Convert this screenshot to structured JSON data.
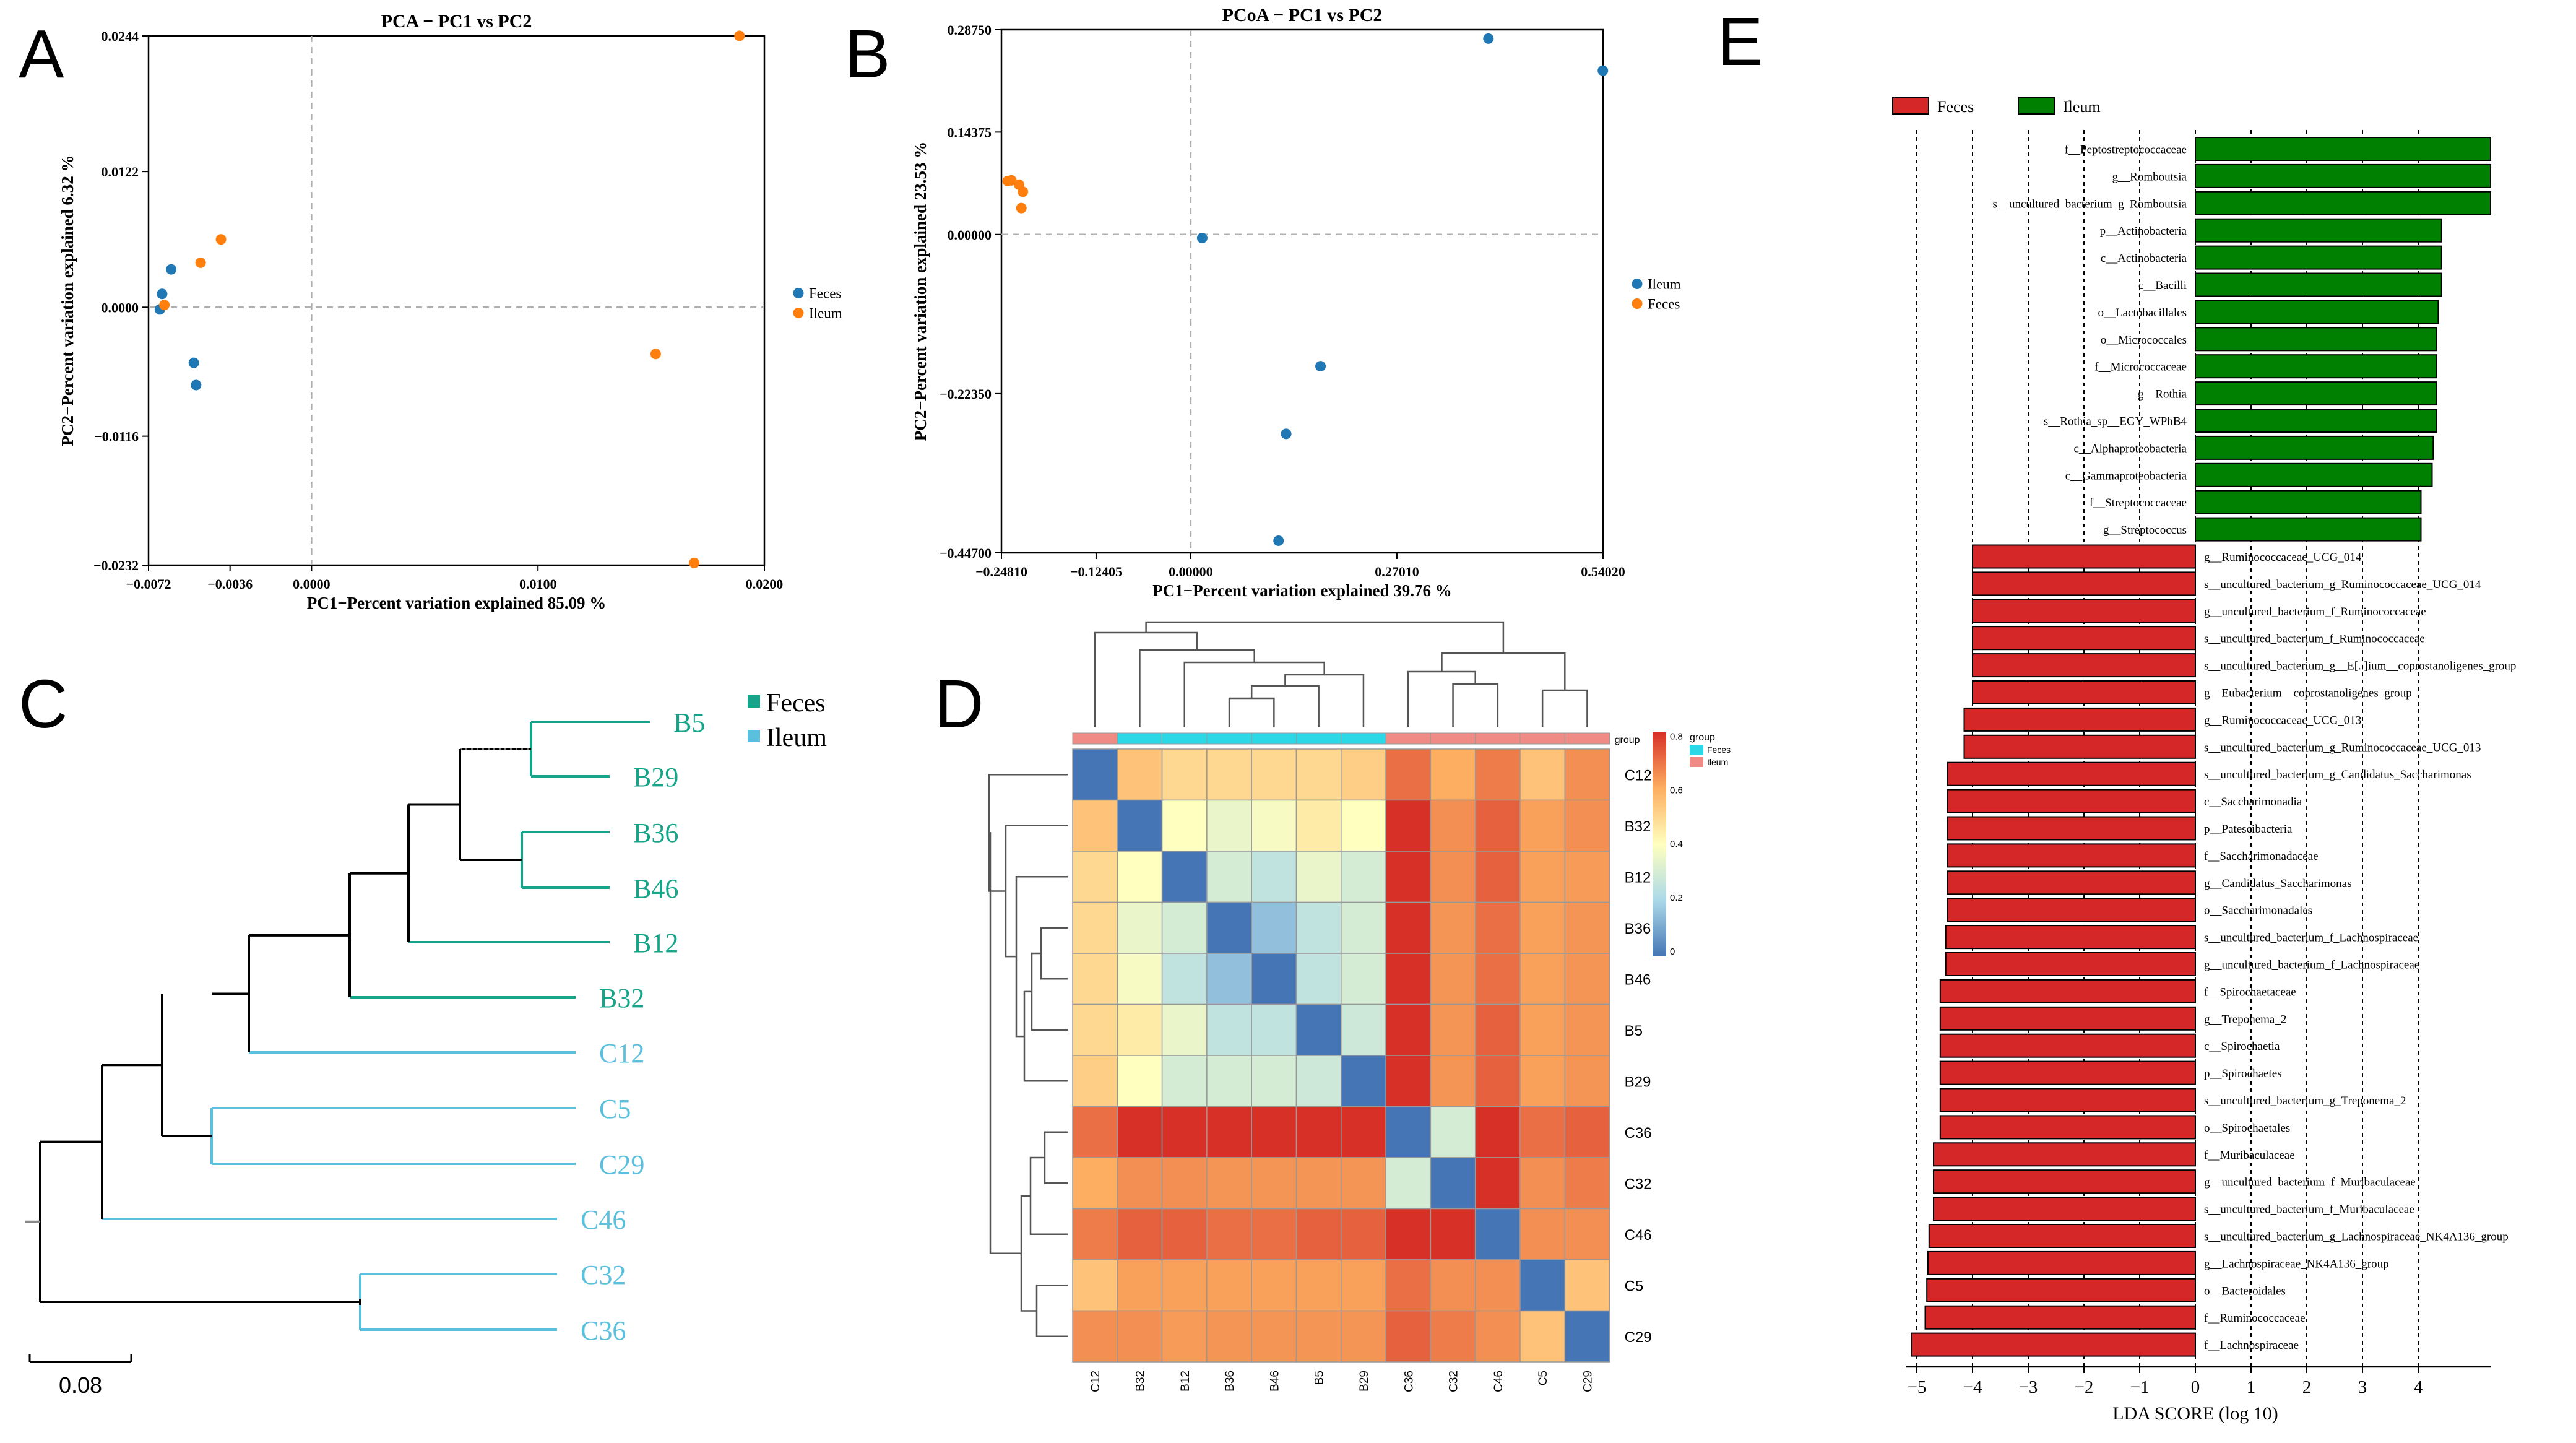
{
  "panel_labels": {
    "A": "A",
    "B": "B",
    "C": "C",
    "D": "D",
    "E": "E"
  },
  "colors": {
    "feces": "#1f77b4",
    "ileum": "#ff7f0e",
    "grid": "#b0b0b0",
    "tree_black": "#000000",
    "tree_feces": "#17a589",
    "tree_ileum": "#5bc0de",
    "lda_feces": "#d62728",
    "lda_ileum": "#008000",
    "heat_feces_bar": "#2bd9e6",
    "heat_ileum_bar": "#f08a84"
  },
  "chart_data": [
    {
      "id": "A",
      "type": "scatter",
      "title": "PCA − PC1 vs PC2",
      "xlabel": "PC1−Percent variation explained 85.09 %",
      "ylabel": "PC2−Percent variation explained 6.32 %",
      "xlim": [
        -0.0072,
        0.02
      ],
      "ylim": [
        -0.0232,
        0.0244
      ],
      "xticks": [
        -0.0072,
        -0.0036,
        0.0,
        0.01,
        0.02
      ],
      "xtick_labels": [
        "−0.0072",
        "−0.0036",
        "0.0000",
        "0.0100",
        "0.0200"
      ],
      "yticks": [
        -0.0232,
        -0.0116,
        0.0,
        0.0122,
        0.0244
      ],
      "ytick_labels": [
        "−0.0232",
        "−0.0116",
        "0.0000",
        "0.0122",
        "0.0244"
      ],
      "legend": [
        {
          "name": "Feces",
          "color": "#1f77b4"
        },
        {
          "name": "Ileum",
          "color": "#ff7f0e"
        }
      ],
      "series": [
        {
          "name": "Feces",
          "points": [
            [
              -0.0062,
              0.0034
            ],
            [
              -0.0066,
              0.0012
            ],
            [
              -0.0067,
              -0.0002
            ],
            [
              -0.0052,
              -0.005
            ],
            [
              -0.0051,
              -0.007
            ]
          ]
        },
        {
          "name": "Ileum",
          "points": [
            [
              0.0189,
              0.0244
            ],
            [
              -0.004,
              0.0061
            ],
            [
              -0.0049,
              0.004
            ],
            [
              -0.0065,
              0.0002
            ],
            [
              0.0152,
              -0.0042
            ],
            [
              0.0169,
              -0.023
            ]
          ]
        }
      ]
    },
    {
      "id": "B",
      "type": "scatter",
      "title": "PCoA − PC1 vs PC2",
      "xlabel": "PC1−Percent variation explained 39.76 %",
      "ylabel": "PC2−Percent variation explained 23.53 %",
      "xlim": [
        -0.2481,
        0.5402
      ],
      "ylim": [
        -0.447,
        0.2875
      ],
      "xticks": [
        -0.2481,
        -0.12405,
        0.0,
        0.2701,
        0.5402
      ],
      "xtick_labels": [
        "−0.24810",
        "−0.12405",
        "0.00000",
        "0.27010",
        "0.54020"
      ],
      "yticks": [
        -0.447,
        -0.2235,
        0.0,
        0.14375,
        0.2875
      ],
      "ytick_labels": [
        "−0.44700",
        "−0.22350",
        "0.00000",
        "0.14375",
        "0.28750"
      ],
      "legend": [
        {
          "name": "Ileum",
          "color": "#1f77b4"
        },
        {
          "name": "Feces",
          "color": "#ff7f0e"
        }
      ],
      "series": [
        {
          "name": "Ileum",
          "points": [
            [
              0.39,
              0.275
            ],
            [
              0.54,
              0.23
            ],
            [
              0.015,
              -0.005
            ],
            [
              0.17,
              -0.185
            ],
            [
              0.125,
              -0.28
            ],
            [
              0.115,
              -0.43
            ]
          ]
        },
        {
          "name": "Feces",
          "points": [
            [
              -0.24,
              0.075
            ],
            [
              -0.235,
              0.076
            ],
            [
              -0.225,
              0.07
            ],
            [
              -0.22,
              0.06
            ],
            [
              -0.222,
              0.037
            ]
          ]
        }
      ]
    },
    {
      "id": "C",
      "type": "dendrogram",
      "legend": [
        {
          "name": "Feces",
          "color": "#17a589"
        },
        {
          "name": "Ileum",
          "color": "#5bc0de"
        }
      ],
      "leaves": [
        {
          "label": "B5",
          "group": "Feces"
        },
        {
          "label": "B29",
          "group": "Feces"
        },
        {
          "label": "B36",
          "group": "Feces"
        },
        {
          "label": "B46",
          "group": "Feces"
        },
        {
          "label": "B12",
          "group": "Feces"
        },
        {
          "label": "B32",
          "group": "Feces"
        },
        {
          "label": "C12",
          "group": "Ileum"
        },
        {
          "label": "C5",
          "group": "Ileum"
        },
        {
          "label": "C29",
          "group": "Ileum"
        },
        {
          "label": "C46",
          "group": "Ileum"
        },
        {
          "label": "C32",
          "group": "Ileum"
        },
        {
          "label": "C36",
          "group": "Ileum"
        }
      ],
      "scale_label": "0.08"
    },
    {
      "id": "D",
      "type": "heatmap",
      "columns": [
        "C12",
        "B32",
        "B12",
        "B36",
        "B46",
        "B5",
        "B29",
        "C36",
        "C32",
        "C46",
        "C5",
        "C29"
      ],
      "rows": [
        "C12",
        "B32",
        "B12",
        "B36",
        "B46",
        "B5",
        "B29",
        "C36",
        "C32",
        "C46",
        "C5",
        "C29"
      ],
      "column_groups": [
        "Ileum",
        "Feces",
        "Feces",
        "Feces",
        "Feces",
        "Feces",
        "Feces",
        "Ileum",
        "Ileum",
        "Ileum",
        "Ileum",
        "Ileum"
      ],
      "group_label": "group",
      "legend_title": "group",
      "legend_items": [
        {
          "name": "Feces",
          "color": "#2bd9e6"
        },
        {
          "name": "Ileum",
          "color": "#f08a84"
        }
      ],
      "colorbar_ticks": [
        0,
        0.2,
        0.4,
        0.6,
        0.8
      ],
      "colorbar_tick_labels": [
        "0",
        "0.2",
        "0.4",
        "0.6",
        "0.8"
      ],
      "values": [
        [
          0.0,
          0.55,
          0.5,
          0.5,
          0.5,
          0.5,
          0.52,
          0.7,
          0.6,
          0.68,
          0.55,
          0.65
        ],
        [
          0.55,
          0.0,
          0.4,
          0.35,
          0.38,
          0.45,
          0.4,
          0.83,
          0.65,
          0.72,
          0.62,
          0.65
        ],
        [
          0.5,
          0.4,
          0.0,
          0.3,
          0.25,
          0.35,
          0.3,
          0.82,
          0.65,
          0.72,
          0.62,
          0.63
        ],
        [
          0.5,
          0.35,
          0.3,
          0.0,
          0.15,
          0.25,
          0.3,
          0.82,
          0.64,
          0.7,
          0.62,
          0.64
        ],
        [
          0.5,
          0.38,
          0.25,
          0.15,
          0.0,
          0.25,
          0.3,
          0.82,
          0.64,
          0.7,
          0.62,
          0.64
        ],
        [
          0.5,
          0.45,
          0.35,
          0.25,
          0.25,
          0.0,
          0.28,
          0.82,
          0.64,
          0.72,
          0.62,
          0.64
        ],
        [
          0.52,
          0.4,
          0.3,
          0.3,
          0.3,
          0.28,
          0.0,
          0.82,
          0.64,
          0.72,
          0.62,
          0.64
        ],
        [
          0.7,
          0.83,
          0.82,
          0.82,
          0.82,
          0.82,
          0.82,
          0.0,
          0.3,
          0.8,
          0.7,
          0.72
        ],
        [
          0.6,
          0.65,
          0.65,
          0.64,
          0.64,
          0.64,
          0.64,
          0.3,
          0.0,
          0.8,
          0.65,
          0.68
        ],
        [
          0.68,
          0.72,
          0.72,
          0.7,
          0.7,
          0.72,
          0.72,
          0.8,
          0.8,
          0.0,
          0.65,
          0.65
        ],
        [
          0.55,
          0.62,
          0.62,
          0.62,
          0.62,
          0.62,
          0.62,
          0.7,
          0.65,
          0.65,
          0.0,
          0.55
        ],
        [
          0.65,
          0.65,
          0.63,
          0.64,
          0.64,
          0.64,
          0.64,
          0.72,
          0.68,
          0.65,
          0.55,
          0.0
        ]
      ]
    },
    {
      "id": "E",
      "type": "bar",
      "orientation": "horizontal",
      "xlabel": "LDA SCORE (log 10)",
      "xlim": [
        -5.2,
        5.3
      ],
      "xticks": [
        -5,
        -4,
        -3,
        -2,
        -1,
        0,
        1,
        2,
        3,
        4
      ],
      "xtick_labels": [
        "−5",
        "−4",
        "−3",
        "−2",
        "−1",
        "0",
        "1",
        "2",
        "3",
        "4"
      ],
      "legend": [
        {
          "name": "Feces",
          "color": "#d62728"
        },
        {
          "name": "Ileum",
          "color": "#008000"
        }
      ],
      "bars": [
        {
          "label": "f__Peptostreptococcaceae",
          "value": 5.3,
          "group": "Ileum"
        },
        {
          "label": "g__Romboutsia",
          "value": 5.3,
          "group": "Ileum"
        },
        {
          "label": "s__uncultured_bacterium_g_Romboutsia",
          "value": 5.3,
          "group": "Ileum"
        },
        {
          "label": "p__Actinobacteria",
          "value": 4.42,
          "group": "Ileum"
        },
        {
          "label": "c__Actinobacteria",
          "value": 4.42,
          "group": "Ileum"
        },
        {
          "label": "c__Bacilli",
          "value": 4.42,
          "group": "Ileum"
        },
        {
          "label": "o__Lactobacillales",
          "value": 4.36,
          "group": "Ileum"
        },
        {
          "label": "o__Micrococcales",
          "value": 4.33,
          "group": "Ileum"
        },
        {
          "label": "f__Micrococcaceae",
          "value": 4.33,
          "group": "Ileum"
        },
        {
          "label": "g__Rothia",
          "value": 4.33,
          "group": "Ileum"
        },
        {
          "label": "s__Rothia_sp__EGY_WPhB4",
          "value": 4.33,
          "group": "Ileum"
        },
        {
          "label": "c__Alphaproteobacteria",
          "value": 4.27,
          "group": "Ileum"
        },
        {
          "label": "c__Gammaproteobacteria",
          "value": 4.25,
          "group": "Ileum"
        },
        {
          "label": "f__Streptococcaceae",
          "value": 4.05,
          "group": "Ileum"
        },
        {
          "label": "g__Streptococcus",
          "value": 4.05,
          "group": "Ileum"
        },
        {
          "label": "g__Ruminococcaceae_UCG_014",
          "value": -4.0,
          "group": "Feces"
        },
        {
          "label": "s__uncultured_bacterium_g_Ruminococcaceae_UCG_014",
          "value": -4.0,
          "group": "Feces"
        },
        {
          "label": "g__uncultured_bacterium_f_Ruminococcaceae",
          "value": -4.0,
          "group": "Feces"
        },
        {
          "label": "s__uncultured_bacterium_f_Ruminococcaceae",
          "value": -4.0,
          "group": "Feces"
        },
        {
          "label": "s__uncultured_bacterium_g__E[..]ium__coprostanoligenes_group",
          "value": -4.0,
          "group": "Feces"
        },
        {
          "label": "g__Eubacterium__coprostanoligenes_group",
          "value": -4.0,
          "group": "Feces"
        },
        {
          "label": "g__Ruminococcaceae_UCG_013",
          "value": -4.15,
          "group": "Feces"
        },
        {
          "label": "s__uncultured_bacterium_g_Ruminococcaceae_UCG_013",
          "value": -4.15,
          "group": "Feces"
        },
        {
          "label": "s__uncultured_bacterium_g_Candidatus_Saccharimonas",
          "value": -4.45,
          "group": "Feces"
        },
        {
          "label": "c__Saccharimonadia",
          "value": -4.45,
          "group": "Feces"
        },
        {
          "label": "p__Patescibacteria",
          "value": -4.45,
          "group": "Feces"
        },
        {
          "label": "f__Saccharimonadaceae",
          "value": -4.45,
          "group": "Feces"
        },
        {
          "label": "g__Candidatus_Saccharimonas",
          "value": -4.45,
          "group": "Feces"
        },
        {
          "label": "o__Saccharimonadales",
          "value": -4.45,
          "group": "Feces"
        },
        {
          "label": "s__uncultured_bacterium_f_Lachnospiraceae",
          "value": -4.48,
          "group": "Feces"
        },
        {
          "label": "g__uncultured_bacterium_f_Lachnospiraceae",
          "value": -4.48,
          "group": "Feces"
        },
        {
          "label": "f__Spirochaetaceae",
          "value": -4.58,
          "group": "Feces"
        },
        {
          "label": "g__Treponema_2",
          "value": -4.58,
          "group": "Feces"
        },
        {
          "label": "c__Spirochaetia",
          "value": -4.58,
          "group": "Feces"
        },
        {
          "label": "p__Spirochaetes",
          "value": -4.58,
          "group": "Feces"
        },
        {
          "label": "s__uncultured_bacterium_g_Treponema_2",
          "value": -4.58,
          "group": "Feces"
        },
        {
          "label": "o__Spirochaetales",
          "value": -4.58,
          "group": "Feces"
        },
        {
          "label": "f__Muribaculaceae",
          "value": -4.7,
          "group": "Feces"
        },
        {
          "label": "g__uncultured_bacterium_f_Muribaculaceae",
          "value": -4.7,
          "group": "Feces"
        },
        {
          "label": "s__uncultured_bacterium_f_Muribaculaceae",
          "value": -4.7,
          "group": "Feces"
        },
        {
          "label": "s__uncultured_bacterium_g_Lachnospiraceae_NK4A136_group",
          "value": -4.78,
          "group": "Feces"
        },
        {
          "label": "g__Lachnospiraceae_NK4A136_group",
          "value": -4.8,
          "group": "Feces"
        },
        {
          "label": "o__Bacteroidales",
          "value": -4.82,
          "group": "Feces"
        },
        {
          "label": "f__Ruminococcaceae",
          "value": -4.85,
          "group": "Feces"
        },
        {
          "label": "f__Lachnospiraceae",
          "value": -5.1,
          "group": "Feces"
        }
      ]
    }
  ]
}
